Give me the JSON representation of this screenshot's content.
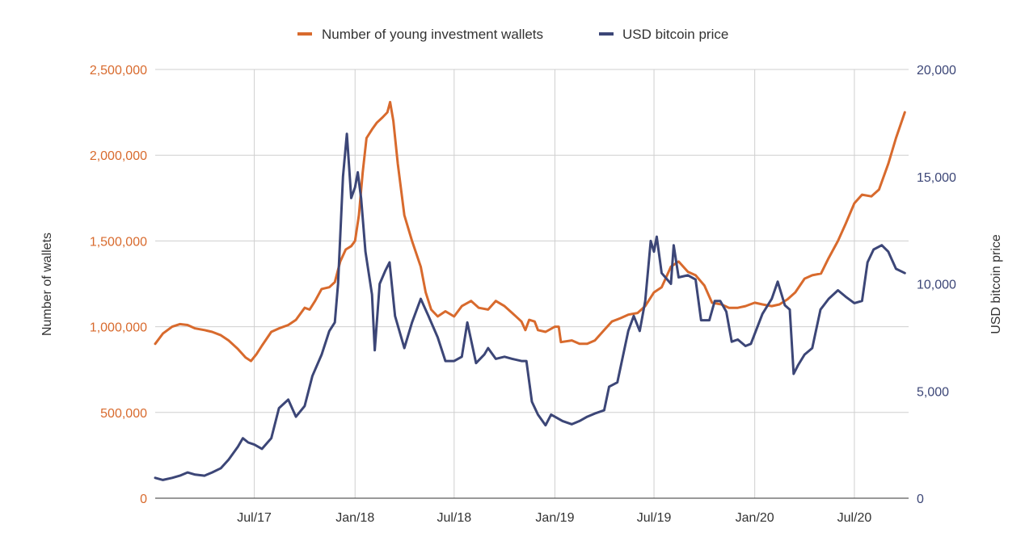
{
  "chart_data": {
    "type": "line",
    "title": "",
    "legend": {
      "placement": "top-center",
      "entries": [
        {
          "name": "Number of young investment wallets",
          "color": "#d86a2d"
        },
        {
          "name": "USD bitcoin price",
          "color": "#3c4677"
        }
      ]
    },
    "x_axis": {
      "label": "",
      "range": [
        "2017-01-01",
        "2020-10-08"
      ],
      "ticks": [
        {
          "label": "Jul/17",
          "date": "2017-07-01"
        },
        {
          "label": "Jan/18",
          "date": "2018-01-01"
        },
        {
          "label": "Jul/18",
          "date": "2018-07-01"
        },
        {
          "label": "Jan/19",
          "date": "2019-01-01"
        },
        {
          "label": "Jul/19",
          "date": "2019-07-01"
        },
        {
          "label": "Jan/20",
          "date": "2020-01-01"
        },
        {
          "label": "Jul/20",
          "date": "2020-07-01"
        }
      ],
      "grid": true
    },
    "y_axis_left": {
      "label": "Number of wallets",
      "range": [
        0,
        2500000
      ],
      "ticks": [
        0,
        500000,
        1000000,
        1500000,
        2000000,
        2500000
      ],
      "tick_labels": [
        "0",
        "500,000",
        "1,000,000",
        "1,500,000",
        "2,000,000",
        "2,500,000"
      ],
      "color": "#d86a2d",
      "grid": true
    },
    "y_axis_right": {
      "label": "USD bitcoin price",
      "range": [
        0,
        20000
      ],
      "ticks": [
        0,
        5000,
        10000,
        15000,
        20000
      ],
      "tick_labels": [
        "0",
        "5,000",
        "10,000",
        "15,000",
        "20,000"
      ],
      "color": "#3c4677"
    },
    "series": [
      {
        "name": "Number of young investment wallets",
        "axis": "left",
        "color": "#d86a2d",
        "points": [
          [
            "2017-01-01",
            900000
          ],
          [
            "2017-01-15",
            960000
          ],
          [
            "2017-02-01",
            1000000
          ],
          [
            "2017-02-15",
            1015000
          ],
          [
            "2017-03-01",
            1010000
          ],
          [
            "2017-03-15",
            990000
          ],
          [
            "2017-04-01",
            980000
          ],
          [
            "2017-04-15",
            970000
          ],
          [
            "2017-05-01",
            950000
          ],
          [
            "2017-05-15",
            920000
          ],
          [
            "2017-06-01",
            870000
          ],
          [
            "2017-06-15",
            820000
          ],
          [
            "2017-06-25",
            800000
          ],
          [
            "2017-07-05",
            840000
          ],
          [
            "2017-07-15",
            890000
          ],
          [
            "2017-08-01",
            970000
          ],
          [
            "2017-08-15",
            990000
          ],
          [
            "2017-09-01",
            1010000
          ],
          [
            "2017-09-15",
            1040000
          ],
          [
            "2017-10-01",
            1110000
          ],
          [
            "2017-10-10",
            1100000
          ],
          [
            "2017-10-20",
            1150000
          ],
          [
            "2017-11-01",
            1220000
          ],
          [
            "2017-11-15",
            1230000
          ],
          [
            "2017-11-25",
            1260000
          ],
          [
            "2017-12-05",
            1380000
          ],
          [
            "2017-12-15",
            1450000
          ],
          [
            "2017-12-25",
            1470000
          ],
          [
            "2018-01-01",
            1500000
          ],
          [
            "2018-01-08",
            1650000
          ],
          [
            "2018-01-15",
            1900000
          ],
          [
            "2018-01-22",
            2100000
          ],
          [
            "2018-02-01",
            2150000
          ],
          [
            "2018-02-10",
            2190000
          ],
          [
            "2018-02-20",
            2220000
          ],
          [
            "2018-03-01",
            2250000
          ],
          [
            "2018-03-06",
            2310000
          ],
          [
            "2018-03-12",
            2200000
          ],
          [
            "2018-03-20",
            1950000
          ],
          [
            "2018-04-01",
            1650000
          ],
          [
            "2018-04-15",
            1500000
          ],
          [
            "2018-05-01",
            1350000
          ],
          [
            "2018-05-10",
            1200000
          ],
          [
            "2018-05-20",
            1100000
          ],
          [
            "2018-06-01",
            1060000
          ],
          [
            "2018-06-15",
            1090000
          ],
          [
            "2018-07-01",
            1060000
          ],
          [
            "2018-07-15",
            1120000
          ],
          [
            "2018-08-01",
            1150000
          ],
          [
            "2018-08-15",
            1110000
          ],
          [
            "2018-09-01",
            1100000
          ],
          [
            "2018-09-15",
            1150000
          ],
          [
            "2018-10-01",
            1120000
          ],
          [
            "2018-10-15",
            1080000
          ],
          [
            "2018-11-01",
            1030000
          ],
          [
            "2018-11-08",
            980000
          ],
          [
            "2018-11-15",
            1040000
          ],
          [
            "2018-11-25",
            1030000
          ],
          [
            "2018-12-01",
            980000
          ],
          [
            "2018-12-15",
            970000
          ],
          [
            "2019-01-01",
            1000000
          ],
          [
            "2019-01-08",
            1000000
          ],
          [
            "2019-01-12",
            910000
          ],
          [
            "2019-02-01",
            920000
          ],
          [
            "2019-02-15",
            900000
          ],
          [
            "2019-03-01",
            900000
          ],
          [
            "2019-03-15",
            920000
          ],
          [
            "2019-04-01",
            980000
          ],
          [
            "2019-04-15",
            1030000
          ],
          [
            "2019-05-01",
            1050000
          ],
          [
            "2019-05-15",
            1070000
          ],
          [
            "2019-06-01",
            1080000
          ],
          [
            "2019-06-15",
            1120000
          ],
          [
            "2019-07-01",
            1200000
          ],
          [
            "2019-07-15",
            1230000
          ],
          [
            "2019-08-01",
            1350000
          ],
          [
            "2019-08-15",
            1380000
          ],
          [
            "2019-09-01",
            1320000
          ],
          [
            "2019-09-15",
            1300000
          ],
          [
            "2019-10-01",
            1240000
          ],
          [
            "2019-10-15",
            1140000
          ],
          [
            "2019-11-01",
            1130000
          ],
          [
            "2019-11-15",
            1110000
          ],
          [
            "2019-12-01",
            1110000
          ],
          [
            "2019-12-15",
            1120000
          ],
          [
            "2020-01-01",
            1140000
          ],
          [
            "2020-01-15",
            1130000
          ],
          [
            "2020-02-01",
            1120000
          ],
          [
            "2020-02-15",
            1130000
          ],
          [
            "2020-03-01",
            1160000
          ],
          [
            "2020-03-15",
            1200000
          ],
          [
            "2020-04-01",
            1280000
          ],
          [
            "2020-04-15",
            1300000
          ],
          [
            "2020-05-01",
            1310000
          ],
          [
            "2020-05-15",
            1400000
          ],
          [
            "2020-06-01",
            1500000
          ],
          [
            "2020-06-15",
            1600000
          ],
          [
            "2020-07-01",
            1720000
          ],
          [
            "2020-07-15",
            1770000
          ],
          [
            "2020-08-01",
            1760000
          ],
          [
            "2020-08-15",
            1800000
          ],
          [
            "2020-09-01",
            1950000
          ],
          [
            "2020-09-15",
            2100000
          ],
          [
            "2020-10-01",
            2250000
          ]
        ]
      },
      {
        "name": "USD bitcoin price",
        "axis": "right",
        "color": "#3c4677",
        "points": [
          [
            "2017-01-01",
            950
          ],
          [
            "2017-01-15",
            850
          ],
          [
            "2017-02-01",
            950
          ],
          [
            "2017-02-15",
            1050
          ],
          [
            "2017-03-01",
            1200
          ],
          [
            "2017-03-15",
            1100
          ],
          [
            "2017-04-01",
            1050
          ],
          [
            "2017-04-15",
            1200
          ],
          [
            "2017-05-01",
            1400
          ],
          [
            "2017-05-15",
            1800
          ],
          [
            "2017-06-01",
            2400
          ],
          [
            "2017-06-10",
            2800
          ],
          [
            "2017-06-20",
            2600
          ],
          [
            "2017-07-01",
            2500
          ],
          [
            "2017-07-15",
            2300
          ],
          [
            "2017-08-01",
            2800
          ],
          [
            "2017-08-15",
            4200
          ],
          [
            "2017-09-01",
            4600
          ],
          [
            "2017-09-15",
            3800
          ],
          [
            "2017-10-01",
            4300
          ],
          [
            "2017-10-15",
            5700
          ],
          [
            "2017-11-01",
            6700
          ],
          [
            "2017-11-15",
            7800
          ],
          [
            "2017-11-25",
            8200
          ],
          [
            "2017-12-01",
            10000
          ],
          [
            "2017-12-10",
            15000
          ],
          [
            "2017-12-17",
            17000
          ],
          [
            "2017-12-25",
            14000
          ],
          [
            "2018-01-01",
            14500
          ],
          [
            "2018-01-06",
            15200
          ],
          [
            "2018-01-12",
            14000
          ],
          [
            "2018-01-20",
            11500
          ],
          [
            "2018-02-01",
            9500
          ],
          [
            "2018-02-06",
            6900
          ],
          [
            "2018-02-15",
            10000
          ],
          [
            "2018-02-25",
            10600
          ],
          [
            "2018-03-05",
            11000
          ],
          [
            "2018-03-15",
            8500
          ],
          [
            "2018-04-01",
            7000
          ],
          [
            "2018-04-15",
            8200
          ],
          [
            "2018-05-01",
            9300
          ],
          [
            "2018-05-15",
            8500
          ],
          [
            "2018-06-01",
            7500
          ],
          [
            "2018-06-15",
            6400
          ],
          [
            "2018-07-01",
            6400
          ],
          [
            "2018-07-15",
            6600
          ],
          [
            "2018-07-25",
            8200
          ],
          [
            "2018-08-10",
            6300
          ],
          [
            "2018-08-25",
            6700
          ],
          [
            "2018-09-01",
            7000
          ],
          [
            "2018-09-15",
            6500
          ],
          [
            "2018-10-01",
            6600
          ],
          [
            "2018-10-15",
            6500
          ],
          [
            "2018-11-01",
            6400
          ],
          [
            "2018-11-10",
            6400
          ],
          [
            "2018-11-20",
            4500
          ],
          [
            "2018-12-01",
            3900
          ],
          [
            "2018-12-15",
            3400
          ],
          [
            "2018-12-25",
            3900
          ],
          [
            "2019-01-01",
            3800
          ],
          [
            "2019-01-15",
            3600
          ],
          [
            "2019-02-01",
            3450
          ],
          [
            "2019-02-15",
            3600
          ],
          [
            "2019-03-01",
            3800
          ],
          [
            "2019-03-15",
            3950
          ],
          [
            "2019-04-01",
            4100
          ],
          [
            "2019-04-10",
            5200
          ],
          [
            "2019-04-25",
            5400
          ],
          [
            "2019-05-15",
            7800
          ],
          [
            "2019-05-25",
            8500
          ],
          [
            "2019-06-05",
            7800
          ],
          [
            "2019-06-15",
            9200
          ],
          [
            "2019-06-25",
            12000
          ],
          [
            "2019-07-01",
            11500
          ],
          [
            "2019-07-06",
            12200
          ],
          [
            "2019-07-15",
            10500
          ],
          [
            "2019-08-01",
            10000
          ],
          [
            "2019-08-06",
            11800
          ],
          [
            "2019-08-15",
            10300
          ],
          [
            "2019-09-01",
            10400
          ],
          [
            "2019-09-15",
            10200
          ],
          [
            "2019-09-25",
            8300
          ],
          [
            "2019-10-10",
            8300
          ],
          [
            "2019-10-20",
            9200
          ],
          [
            "2019-10-30",
            9200
          ],
          [
            "2019-11-10",
            8700
          ],
          [
            "2019-11-20",
            7300
          ],
          [
            "2019-12-01",
            7400
          ],
          [
            "2019-12-15",
            7100
          ],
          [
            "2019-12-25",
            7200
          ],
          [
            "2020-01-15",
            8600
          ],
          [
            "2020-02-01",
            9300
          ],
          [
            "2020-02-12",
            10100
          ],
          [
            "2020-02-25",
            9000
          ],
          [
            "2020-03-05",
            8800
          ],
          [
            "2020-03-12",
            5800
          ],
          [
            "2020-03-20",
            6200
          ],
          [
            "2020-04-01",
            6700
          ],
          [
            "2020-04-15",
            7000
          ],
          [
            "2020-04-30",
            8800
          ],
          [
            "2020-05-15",
            9300
          ],
          [
            "2020-06-01",
            9700
          ],
          [
            "2020-06-15",
            9400
          ],
          [
            "2020-07-01",
            9100
          ],
          [
            "2020-07-15",
            9200
          ],
          [
            "2020-07-25",
            11000
          ],
          [
            "2020-08-05",
            11600
          ],
          [
            "2020-08-20",
            11800
          ],
          [
            "2020-09-01",
            11500
          ],
          [
            "2020-09-15",
            10700
          ],
          [
            "2020-10-01",
            10500
          ]
        ]
      }
    ]
  }
}
